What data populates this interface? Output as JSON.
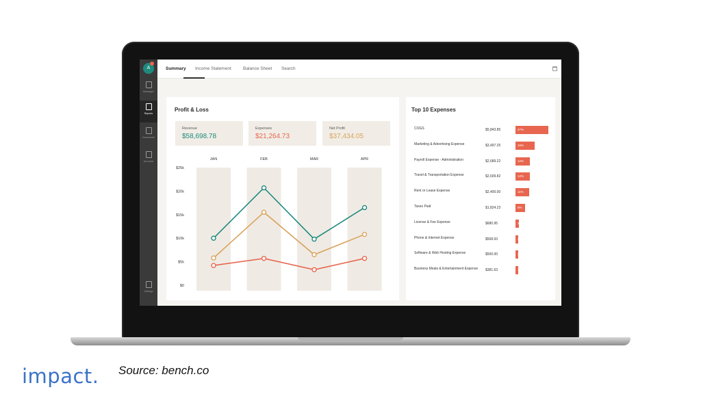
{
  "sidebar": {
    "avatar_initial": "A",
    "items": [
      {
        "label": "Messages",
        "icon": "messages-icon"
      },
      {
        "label": "Reports",
        "icon": "reports-icon"
      },
      {
        "label": "Documents",
        "icon": "documents-icon"
      },
      {
        "label": "Accounts",
        "icon": "accounts-icon"
      },
      {
        "label": "Settings",
        "icon": "settings-icon"
      }
    ],
    "active_index": 1
  },
  "tabs": [
    "Summary",
    "Income Statement",
    "Balance Sheet",
    "Search"
  ],
  "active_tab": "Summary",
  "profit_loss": {
    "title": "Profit & Loss",
    "kpis": [
      {
        "label": "Revenue",
        "value": "$58,698.78",
        "color": "#1d8a7e"
      },
      {
        "label": "Expenses",
        "value": "$21,264.73",
        "color": "#e8664f"
      },
      {
        "label": "Net Profit",
        "value": "$37,434.05",
        "color": "#d9a35c"
      }
    ]
  },
  "chart_data": {
    "type": "line",
    "categories": [
      "JAN",
      "FEB",
      "MAR",
      "APR"
    ],
    "y_tick_labels": [
      "$25k",
      "$20k",
      "$15k",
      "$10k",
      "$5k",
      "$0"
    ],
    "ylim": [
      0,
      25000
    ],
    "series": [
      {
        "color": "#1d8a7e",
        "values": [
          10000,
          20700,
          9800,
          16500
        ]
      },
      {
        "color": "#d9a35c",
        "values": [
          5800,
          15500,
          6500,
          10800
        ]
      },
      {
        "color": "#e8664f",
        "values": [
          4200,
          5700,
          3300,
          5700
        ]
      }
    ]
  },
  "top_expenses": {
    "title": "Top 10 Expenses",
    "rows": [
      {
        "label": "COGS",
        "amount": "$5,843.85",
        "pct_label": "27%",
        "pct": 27
      },
      {
        "label": "Marketing & Advertising Expense",
        "amount": "$3,497.25",
        "pct_label": "16%",
        "pct": 16
      },
      {
        "label": "Payroll Expense - Administration",
        "amount": "$2,689.22",
        "pct_label": "12%",
        "pct": 12
      },
      {
        "label": "Travel & Transportation Expense",
        "amount": "$2,609.82",
        "pct_label": "12%",
        "pct": 12
      },
      {
        "label": "Rent or Lease Expense",
        "amount": "$2,400.00",
        "pct_label": "11%",
        "pct": 11
      },
      {
        "label": "Taxes Paid",
        "amount": "$1,824.23",
        "pct_label": "8%",
        "pct": 8
      },
      {
        "label": "License & Fee Expense",
        "amount": "$680.95",
        "pct_label": "3%",
        "pct": 3
      },
      {
        "label": "Phone & Internet Expense",
        "amount": "$568.93",
        "pct_label": "2%",
        "pct": 2
      },
      {
        "label": "Software & Web Hosting Expense",
        "amount": "$500.00",
        "pct_label": "2%",
        "pct": 2
      },
      {
        "label": "Business Meals & Entertainment Expense",
        "amount": "$381.63",
        "pct_label": "1%",
        "pct": 1
      }
    ],
    "bar_color": "#e8664f"
  },
  "footer": {
    "brand": "impact.",
    "source": "Source: bench.co"
  }
}
